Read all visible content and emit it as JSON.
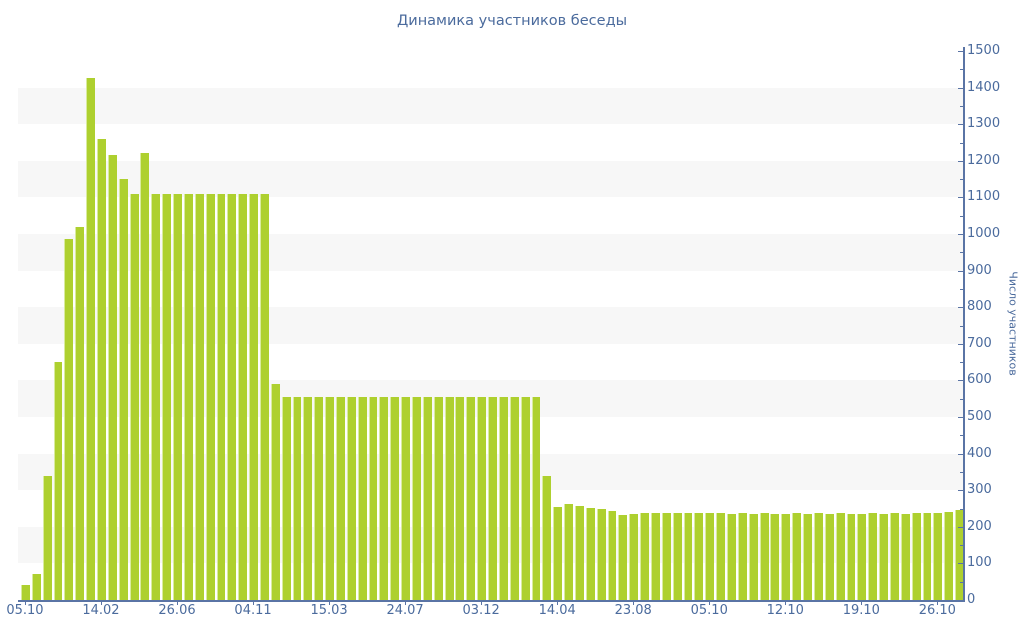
{
  "chart_data": {
    "type": "bar",
    "title": "Динамика участников беседы",
    "ylabel": "Число участников",
    "ylim": [
      0,
      1500
    ],
    "ytick_step": 100,
    "yminor_step": 50,
    "legend": "none",
    "grid": "alternating horizontal gray bands between odd hundreds (100-200, 300-400, ... 1300-1400)",
    "colors": {
      "bar": "#aed02f",
      "bar_edge": "#d9eb9e",
      "band": "#f7f7f7",
      "axis_line": "#5a74a5",
      "text": "#4b6b9d"
    },
    "xtick_every": 7,
    "xtick_labels": [
      "05.10",
      "14.02",
      "26.06",
      "04.11",
      "15.03",
      "24.07",
      "03.12",
      "14.04",
      "23.08",
      "05.10",
      "12.10",
      "19.10",
      "26.10"
    ],
    "values": [
      40,
      70,
      340,
      650,
      985,
      1020,
      1425,
      1260,
      1215,
      1150,
      1110,
      1220,
      1110,
      1110,
      1110,
      1110,
      1110,
      1110,
      1110,
      1110,
      1110,
      1110,
      1110,
      590,
      555,
      555,
      555,
      555,
      555,
      555,
      555,
      555,
      555,
      555,
      555,
      555,
      555,
      555,
      555,
      555,
      555,
      555,
      555,
      555,
      555,
      555,
      555,
      555,
      340,
      255,
      262,
      257,
      252,
      250,
      243,
      233,
      235,
      238,
      239,
      239,
      237,
      237,
      237,
      239,
      237,
      236,
      237,
      236,
      237,
      236,
      236,
      237,
      236,
      237,
      236,
      237,
      236,
      236,
      237,
      236,
      237,
      236,
      237,
      238,
      238,
      240,
      245
    ]
  }
}
